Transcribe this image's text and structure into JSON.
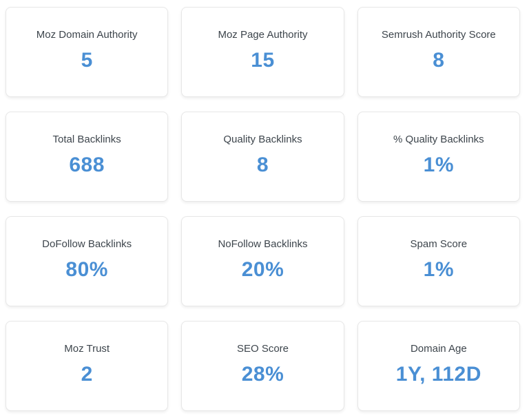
{
  "theme": {
    "value_color": "#4a8fd4",
    "label_color": "#3d454c",
    "card_border_color": "#e7e7e7",
    "background_color": "#ffffff"
  },
  "cards": [
    {
      "label": "Moz Domain Authority",
      "value": "5"
    },
    {
      "label": "Moz Page Authority",
      "value": "15"
    },
    {
      "label": "Semrush Authority Score",
      "value": "8"
    },
    {
      "label": "Total Backlinks",
      "value": "688"
    },
    {
      "label": "Quality Backlinks",
      "value": "8"
    },
    {
      "label": "% Quality Backlinks",
      "value": "1%"
    },
    {
      "label": "DoFollow Backlinks",
      "value": "80%"
    },
    {
      "label": "NoFollow Backlinks",
      "value": "20%"
    },
    {
      "label": "Spam Score",
      "value": "1%"
    },
    {
      "label": "Moz Trust",
      "value": "2"
    },
    {
      "label": "SEO Score",
      "value": "28%"
    },
    {
      "label": "Domain Age",
      "value": "1Y, 112D"
    }
  ]
}
